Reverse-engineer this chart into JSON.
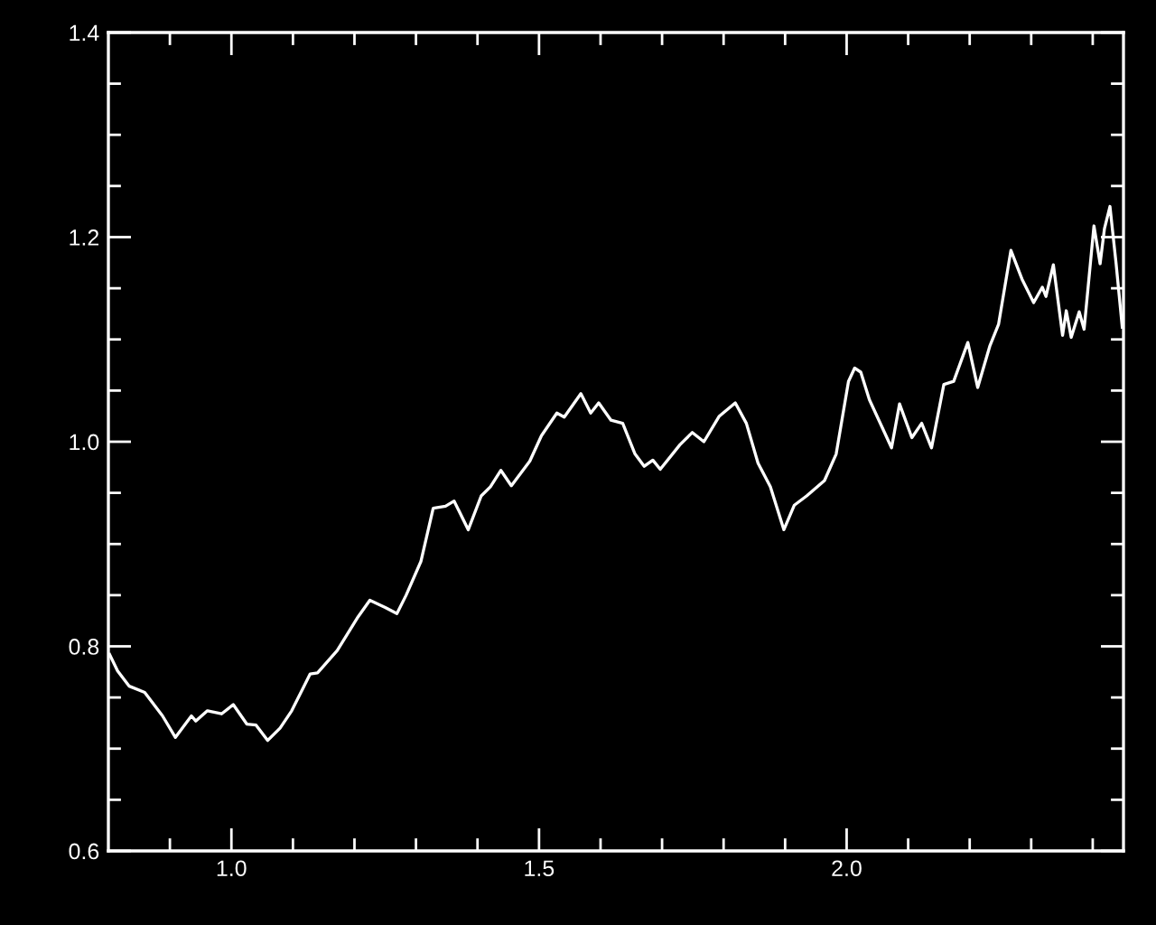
{
  "chart_data": {
    "type": "line",
    "xlim": [
      0.8,
      2.45
    ],
    "ylim": [
      0.6,
      1.4
    ],
    "xticks": [
      {
        "value": 0.9,
        "label": null
      },
      {
        "value": 1.0,
        "label": "1.0"
      },
      {
        "value": 1.1,
        "label": null
      },
      {
        "value": 1.2,
        "label": null
      },
      {
        "value": 1.3,
        "label": null
      },
      {
        "value": 1.4,
        "label": null
      },
      {
        "value": 1.5,
        "label": "1.5"
      },
      {
        "value": 1.6,
        "label": null
      },
      {
        "value": 1.7,
        "label": null
      },
      {
        "value": 1.8,
        "label": null
      },
      {
        "value": 1.9,
        "label": null
      },
      {
        "value": 2.0,
        "label": "2.0"
      },
      {
        "value": 2.1,
        "label": null
      },
      {
        "value": 2.2,
        "label": null
      },
      {
        "value": 2.3,
        "label": null
      },
      {
        "value": 2.4,
        "label": null
      }
    ],
    "yticks": [
      {
        "value": 0.6,
        "label": "0.6"
      },
      {
        "value": 0.65,
        "label": null
      },
      {
        "value": 0.7,
        "label": null
      },
      {
        "value": 0.75,
        "label": null
      },
      {
        "value": 0.8,
        "label": "0.8"
      },
      {
        "value": 0.85,
        "label": null
      },
      {
        "value": 0.9,
        "label": null
      },
      {
        "value": 0.95,
        "label": null
      },
      {
        "value": 1.0,
        "label": "1.0"
      },
      {
        "value": 1.05,
        "label": null
      },
      {
        "value": 1.1,
        "label": null
      },
      {
        "value": 1.15,
        "label": null
      },
      {
        "value": 1.2,
        "label": "1.2"
      },
      {
        "value": 1.25,
        "label": null
      },
      {
        "value": 1.3,
        "label": null
      },
      {
        "value": 1.35,
        "label": null
      },
      {
        "value": 1.4,
        "label": "1.4"
      }
    ],
    "grid": false,
    "legend": false,
    "marker": "none",
    "line_style": "solid",
    "series": [
      {
        "color": "#ffffff",
        "x": [
          0.802,
          0.815,
          0.834,
          0.859,
          0.888,
          0.909,
          0.935,
          0.942,
          0.961,
          0.984,
          1.003,
          1.025,
          1.04,
          1.059,
          1.079,
          1.098,
          1.128,
          1.14,
          1.172,
          1.206,
          1.225,
          1.25,
          1.269,
          1.284,
          1.308,
          1.328,
          1.348,
          1.362,
          1.385,
          1.406,
          1.421,
          1.438,
          1.455,
          1.485,
          1.504,
          1.529,
          1.541,
          1.568,
          1.584,
          1.597,
          1.617,
          1.636,
          1.656,
          1.671,
          1.685,
          1.697,
          1.729,
          1.749,
          1.768,
          1.793,
          1.819,
          1.837,
          1.856,
          1.876,
          1.898,
          1.915,
          1.935,
          1.964,
          1.983,
          2.003,
          2.013,
          2.023,
          2.037,
          2.057,
          2.073,
          2.086,
          2.106,
          2.122,
          2.138,
          2.158,
          2.174,
          2.197,
          2.213,
          2.233,
          2.247,
          2.267,
          2.285,
          2.304,
          2.318,
          2.324,
          2.336,
          2.351,
          2.357,
          2.365,
          2.378,
          2.386,
          2.402,
          2.412,
          2.419,
          2.428,
          2.438,
          2.448
        ],
        "values": [
          0.792,
          0.776,
          0.761,
          0.755,
          0.732,
          0.711,
          0.732,
          0.727,
          0.737,
          0.734,
          0.743,
          0.724,
          0.723,
          0.708,
          0.72,
          0.737,
          0.773,
          0.774,
          0.796,
          0.829,
          0.845,
          0.838,
          0.832,
          0.85,
          0.883,
          0.935,
          0.937,
          0.942,
          0.914,
          0.947,
          0.956,
          0.972,
          0.957,
          0.981,
          1.006,
          1.028,
          1.024,
          1.047,
          1.028,
          1.038,
          1.021,
          1.018,
          0.988,
          0.976,
          0.982,
          0.973,
          0.997,
          1.009,
          1.0,
          1.025,
          1.038,
          1.018,
          0.979,
          0.956,
          0.914,
          0.938,
          0.947,
          0.962,
          0.988,
          1.059,
          1.072,
          1.068,
          1.041,
          1.015,
          0.994,
          1.037,
          1.004,
          1.018,
          0.994,
          1.056,
          1.059,
          1.097,
          1.053,
          1.094,
          1.115,
          1.187,
          1.159,
          1.136,
          1.151,
          1.142,
          1.173,
          1.104,
          1.128,
          1.102,
          1.127,
          1.11,
          1.211,
          1.174,
          1.208,
          1.23,
          1.174,
          1.112
        ]
      }
    ]
  }
}
